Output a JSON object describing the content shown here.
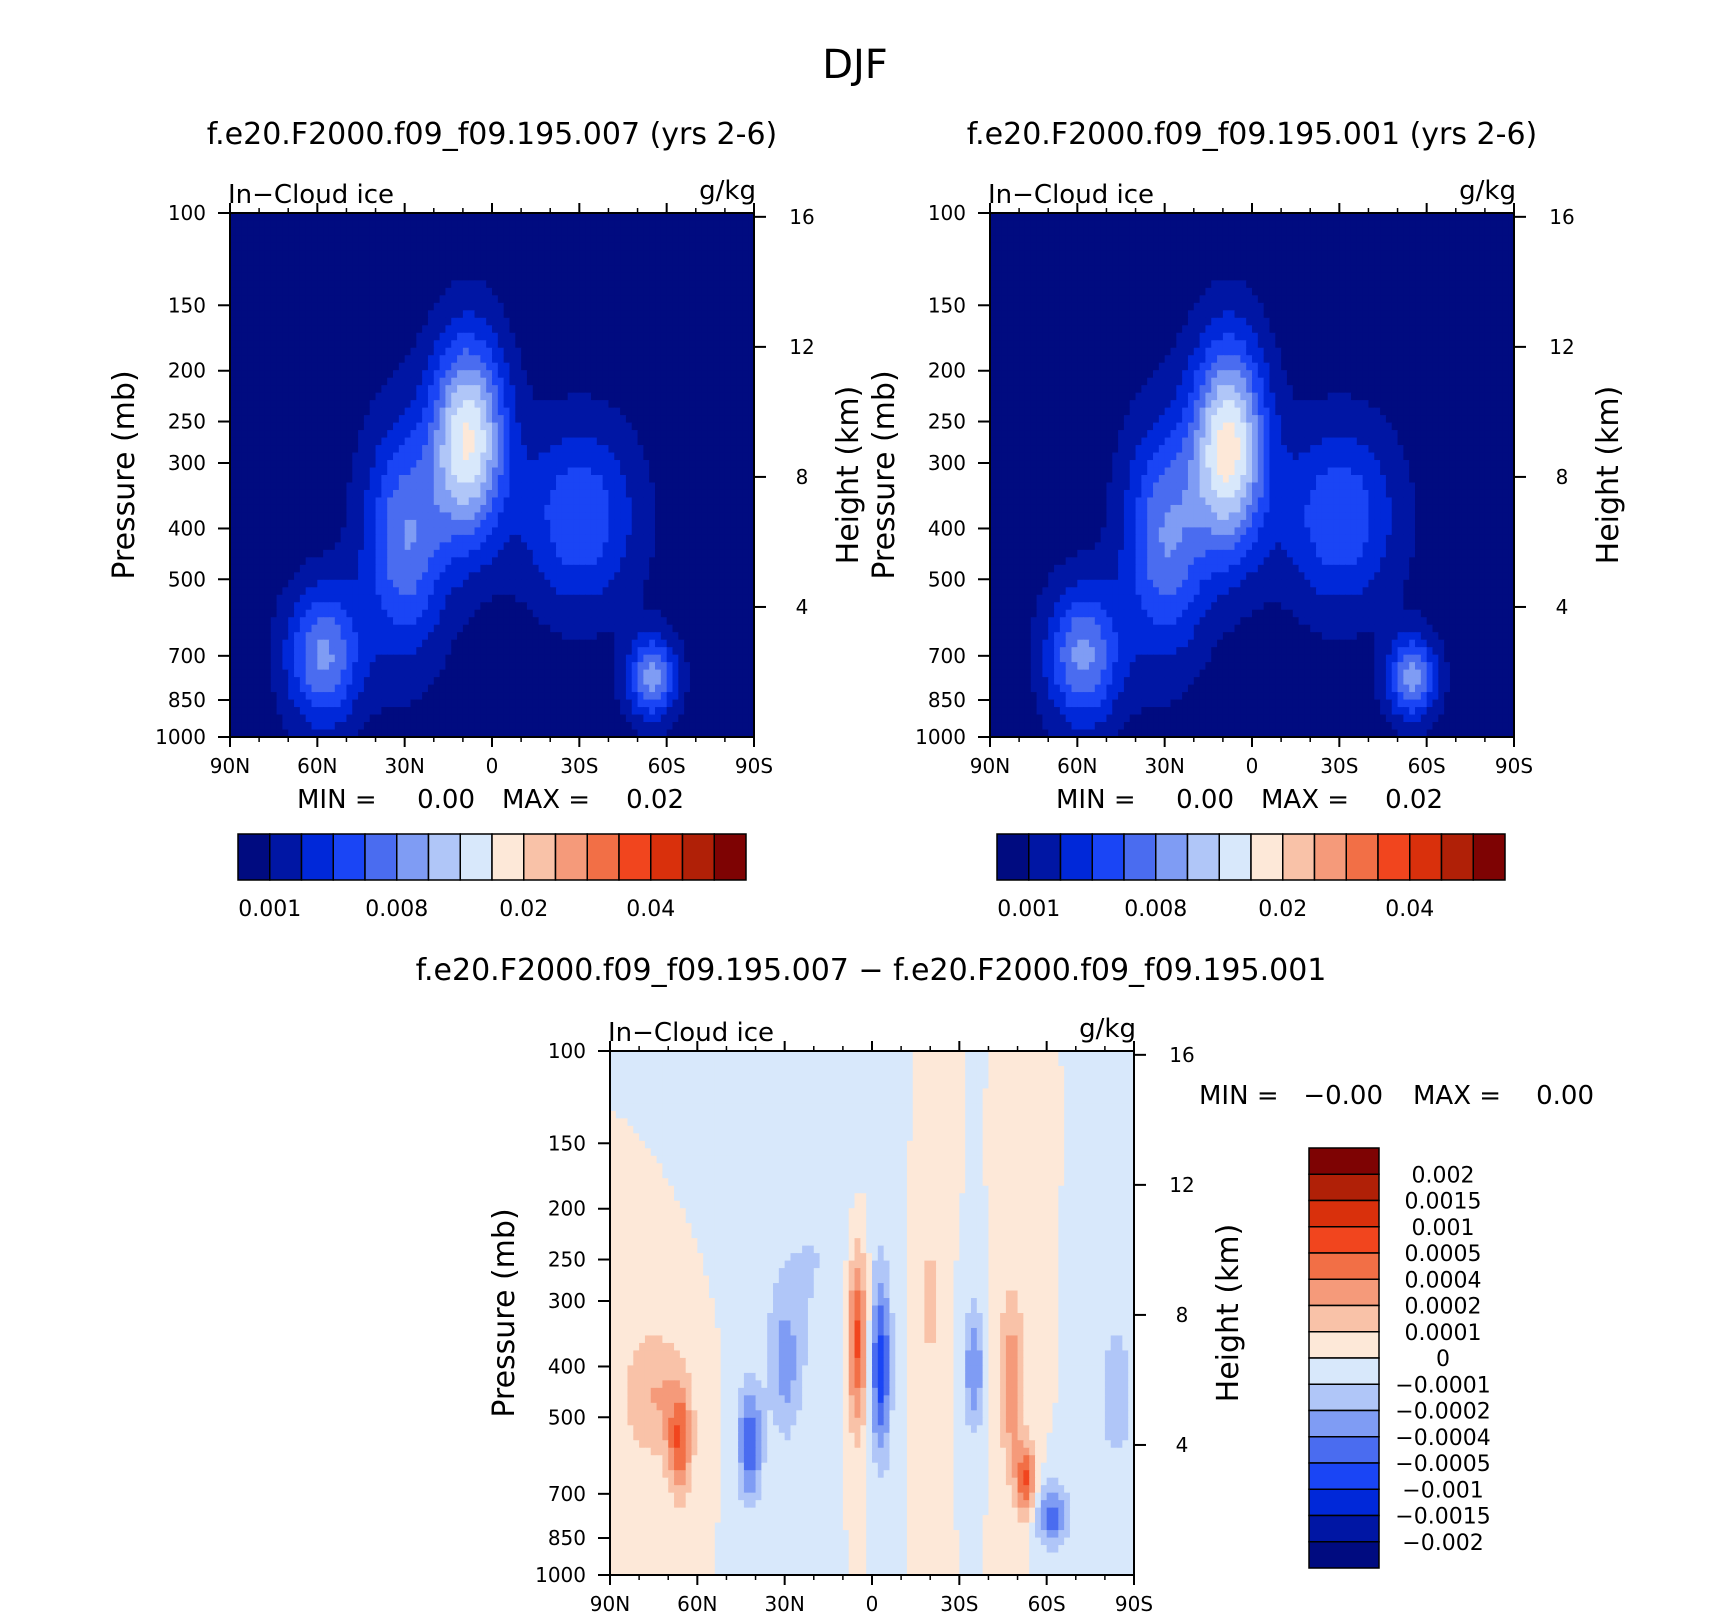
{
  "figure": {
    "title": "DJF"
  },
  "colors": {
    "abs_levels": [
      "#000b80",
      "#0016a4",
      "#0028d9",
      "#1a45f5",
      "#4a6cf0",
      "#7f9cf4",
      "#b0c6f8",
      "#d8e8fb",
      "#fde8d8",
      "#f9c2a8",
      "#f59a7a",
      "#f26f46",
      "#f1451e",
      "#d9300c",
      "#b02007",
      "#7e0303"
    ],
    "diff_levels": [
      "#000b80",
      "#0016a4",
      "#0028d9",
      "#1a45f5",
      "#4a6cf0",
      "#7f9cf4",
      "#b0c6f8",
      "#d8e8fb",
      "#fde8d8",
      "#f9c2a8",
      "#f59a7a",
      "#f26f46",
      "#f1451e",
      "#d9300c",
      "#b02007",
      "#7e0303"
    ]
  },
  "chart_data": [
    {
      "type": "heatmap",
      "title": "f.e20.F2000.f09_f09.195.007 (yrs 2-6)",
      "left_label": "In−Cloud ice",
      "right_label": "g/kg",
      "ylabel": "Pressure (mb)",
      "y2label": "Height (km)",
      "yscale": "log",
      "ylim": [
        1000,
        100
      ],
      "x_ticks": [
        "90N",
        "60N",
        "30N",
        "0",
        "30S",
        "60S",
        "90S"
      ],
      "y_ticks": [
        "100",
        "150",
        "200",
        "250",
        "300",
        "400",
        "500",
        "700",
        "850",
        "1000"
      ],
      "y2_ticks": [
        "16",
        "12",
        "8",
        "4"
      ],
      "min_label": "MIN =",
      "min_value": "0.00",
      "max_label": "MAX =",
      "max_value": "0.02",
      "colorbar_labels": [
        "0.001",
        "0.008",
        "0.02",
        "0.04"
      ],
      "features": [
        {
          "lat": 8,
          "p": 270,
          "sigma_lat": 9,
          "sigma_z": 2.2,
          "level": 7.6
        },
        {
          "lat": 30,
          "p": 420,
          "sigma_lat": 10,
          "sigma_z": 2.5,
          "level": 4.5
        },
        {
          "lat": 58,
          "p": 700,
          "sigma_lat": 9,
          "sigma_z": 1.5,
          "level": 4.8
        },
        {
          "lat": -55,
          "p": 770,
          "sigma_lat": 6,
          "sigma_z": 0.9,
          "level": 5.0
        },
        {
          "lat": -30,
          "p": 380,
          "sigma_lat": 14,
          "sigma_z": 2.0,
          "level": 3.5
        }
      ]
    },
    {
      "type": "heatmap",
      "title": "f.e20.F2000.f09_f09.195.001 (yrs 2-6)",
      "left_label": "In−Cloud ice",
      "right_label": "g/kg",
      "ylabel": "Pressure (mb)",
      "y2label": "Height (km)",
      "yscale": "log",
      "ylim": [
        1000,
        100
      ],
      "x_ticks": [
        "90N",
        "60N",
        "30N",
        "0",
        "30S",
        "60S",
        "90S"
      ],
      "y_ticks": [
        "100",
        "150",
        "200",
        "250",
        "300",
        "400",
        "500",
        "700",
        "850",
        "1000"
      ],
      "y2_ticks": [
        "16",
        "12",
        "8",
        "4"
      ],
      "min_label": "MIN =",
      "min_value": "0.00",
      "max_label": "MAX =",
      "max_value": "0.02",
      "colorbar_labels": [
        "0.001",
        "0.008",
        "0.02",
        "0.04"
      ],
      "features": [
        {
          "lat": 8,
          "p": 280,
          "sigma_lat": 9,
          "sigma_z": 2.3,
          "level": 7.9
        },
        {
          "lat": 30,
          "p": 420,
          "sigma_lat": 10,
          "sigma_z": 2.5,
          "level": 4.5
        },
        {
          "lat": 58,
          "p": 700,
          "sigma_lat": 9,
          "sigma_z": 1.5,
          "level": 4.9
        },
        {
          "lat": -55,
          "p": 770,
          "sigma_lat": 6,
          "sigma_z": 0.9,
          "level": 5.0
        },
        {
          "lat": -30,
          "p": 380,
          "sigma_lat": 14,
          "sigma_z": 2.0,
          "level": 3.5
        }
      ]
    },
    {
      "type": "heatmap",
      "title": "f.e20.F2000.f09_f09.195.007 − f.e20.F2000.f09_f09.195.001",
      "left_label": "In−Cloud ice",
      "right_label": "g/kg",
      "ylabel": "Pressure (mb)",
      "y2label": "Height (km)",
      "yscale": "log",
      "ylim": [
        1000,
        100
      ],
      "x_ticks": [
        "90N",
        "60N",
        "30N",
        "0",
        "30S",
        "60S",
        "90S"
      ],
      "y_ticks": [
        "100",
        "150",
        "200",
        "250",
        "300",
        "400",
        "500",
        "700",
        "850",
        "1000"
      ],
      "y2_ticks": [
        "16",
        "12",
        "8",
        "4"
      ],
      "min_label": "MIN =",
      "min_value": "−0.00",
      "max_label": "MAX =",
      "max_value": "0.00",
      "colorbar_labels": [
        "0.002",
        "0.0015",
        "0.001",
        "0.0005",
        "0.0004",
        "0.0002",
        "0.0001",
        "0",
        "−0.0001",
        "−0.0002",
        "−0.0004",
        "−0.0005",
        "−0.001",
        "−0.0015",
        "−0.002"
      ],
      "features": [
        {
          "lat": 5,
          "p": 350,
          "sigma_lat": 2.5,
          "sigma_z": 2.0,
          "level": 4.5
        },
        {
          "lat": -3,
          "p": 400,
          "sigma_lat": 2.5,
          "sigma_z": 2.0,
          "level": -4.5
        },
        {
          "lat": 66,
          "p": 560,
          "sigma_lat": 3,
          "sigma_z": 1.2,
          "level": 3.5
        },
        {
          "lat": 75,
          "p": 450,
          "sigma_lat": 8,
          "sigma_z": 1.5,
          "level": 2.0
        },
        {
          "lat": 42,
          "p": 560,
          "sigma_lat": 3,
          "sigma_z": 1.3,
          "level": -3.8
        },
        {
          "lat": 30,
          "p": 400,
          "sigma_lat": 4,
          "sigma_z": 1.6,
          "level": -2.2
        },
        {
          "lat": -35,
          "p": 400,
          "sigma_lat": 2.5,
          "sigma_z": 1.4,
          "level": -3.0
        },
        {
          "lat": -48,
          "p": 430,
          "sigma_lat": 3,
          "sigma_z": 2.0,
          "level": 2.8
        },
        {
          "lat": -53,
          "p": 660,
          "sigma_lat": 2.5,
          "sigma_z": 0.8,
          "level": 4.0
        },
        {
          "lat": -62,
          "p": 770,
          "sigma_lat": 4,
          "sigma_z": 0.7,
          "level": -3.5
        },
        {
          "lat": -84,
          "p": 450,
          "sigma_lat": 4,
          "sigma_z": 1.5,
          "level": -2.0
        },
        {
          "lat": 20,
          "p": 250,
          "sigma_lat": 12,
          "sigma_z": 3.0,
          "level": -1.0
        },
        {
          "lat": -20,
          "p": 300,
          "sigma_lat": 3,
          "sigma_z": 2.5,
          "level": 1.2
        }
      ]
    }
  ]
}
